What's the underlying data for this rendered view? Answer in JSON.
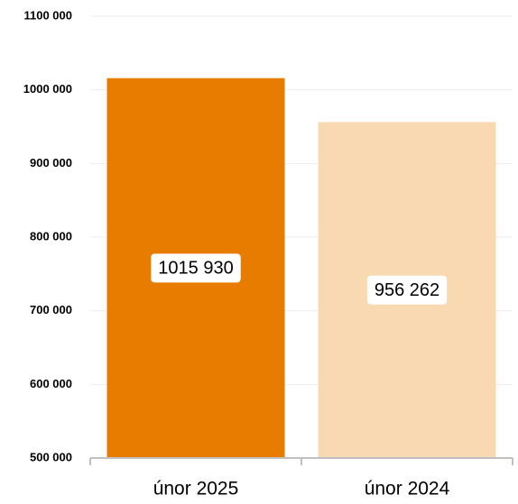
{
  "chart_data": {
    "type": "bar",
    "categories": [
      "únor 2025",
      "únor 2024"
    ],
    "values": [
      1015930,
      956262
    ],
    "value_labels": [
      "1015 930",
      "956 262"
    ],
    "colors": [
      "#e87c00",
      "#f9d9b2"
    ],
    "ylim": [
      500000,
      1100000
    ],
    "yticks": [
      {
        "value": 500000,
        "label": "500 000"
      },
      {
        "value": 600000,
        "label": "600 000"
      },
      {
        "value": 700000,
        "label": "700 000"
      },
      {
        "value": 800000,
        "label": "800 000"
      },
      {
        "value": 900000,
        "label": "900 000"
      },
      {
        "value": 1000000,
        "label": "1000 000"
      },
      {
        "value": 1100000,
        "label": "1100 000"
      }
    ],
    "grid": true
  }
}
